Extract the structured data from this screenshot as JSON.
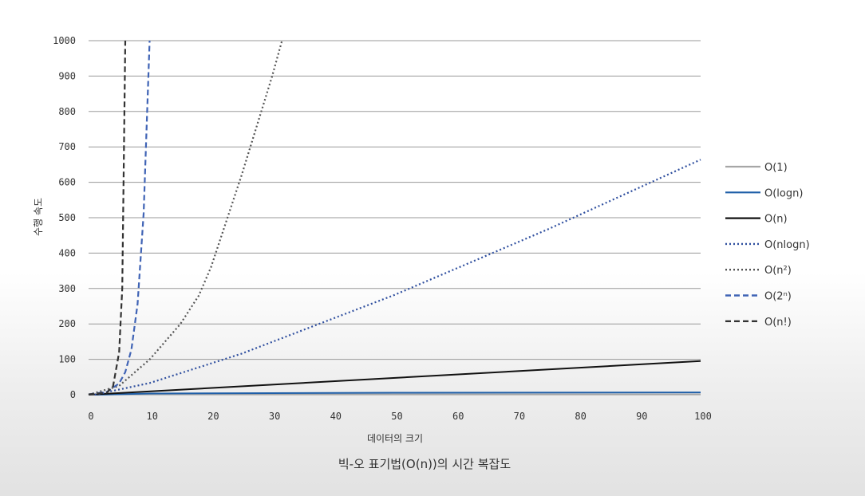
{
  "chart_data": {
    "type": "line",
    "title": "",
    "caption": "빅-오 표기법(O(n))의 시간 복잡도",
    "xlabel": "데이터의 크기",
    "ylabel": "수행 속도",
    "xlim": [
      0,
      100
    ],
    "ylim": [
      0,
      1000
    ],
    "x_ticks": [
      "0",
      "10",
      "20",
      "30",
      "40",
      "50",
      "60",
      "70",
      "80",
      "90",
      "100"
    ],
    "y_ticks": [
      "0",
      "100",
      "200",
      "300",
      "400",
      "500",
      "600",
      "700",
      "800",
      "900",
      "1000"
    ],
    "grid": "horizontal",
    "legend_position": "right",
    "series": [
      {
        "name": "O(1)",
        "color": "#a6a6a6",
        "style": "solid",
        "x": [
          0,
          100
        ],
        "y": [
          1,
          1
        ]
      },
      {
        "name": "O(logn)",
        "color": "#1f5fa8",
        "style": "solid",
        "x": [
          1,
          10,
          50,
          100
        ],
        "y": [
          0,
          3.3,
          5.6,
          6.6
        ]
      },
      {
        "name": "O(n)",
        "color": "#111111",
        "style": "solid",
        "x": [
          0,
          100
        ],
        "y": [
          0,
          95
        ]
      },
      {
        "name": "O(nlogn)",
        "color": "#2f4f9f",
        "style": "dotted",
        "x": [
          1,
          10,
          25,
          50,
          75,
          100
        ],
        "y": [
          0,
          33,
          116,
          282,
          467,
          664
        ]
      },
      {
        "name": "O(n²)",
        "color": "#555555",
        "style": "dotted",
        "x": [
          0,
          5,
          10,
          15,
          18,
          20,
          25,
          30,
          31.6
        ],
        "y": [
          0,
          25,
          100,
          200,
          280,
          360,
          620,
          900,
          1000
        ]
      },
      {
        "name": "O(2ⁿ)",
        "color": "#3f63b5",
        "style": "dashed",
        "x": [
          0,
          3,
          5,
          6,
          7,
          8,
          9,
          9.97
        ],
        "y": [
          1,
          8,
          32,
          64,
          128,
          256,
          512,
          1000
        ]
      },
      {
        "name": "O(n!)",
        "color": "#333333",
        "style": "dashed",
        "x": [
          0,
          3,
          4,
          5,
          5.5,
          6
        ],
        "y": [
          1,
          6,
          24,
          120,
          300,
          1000
        ]
      }
    ]
  }
}
